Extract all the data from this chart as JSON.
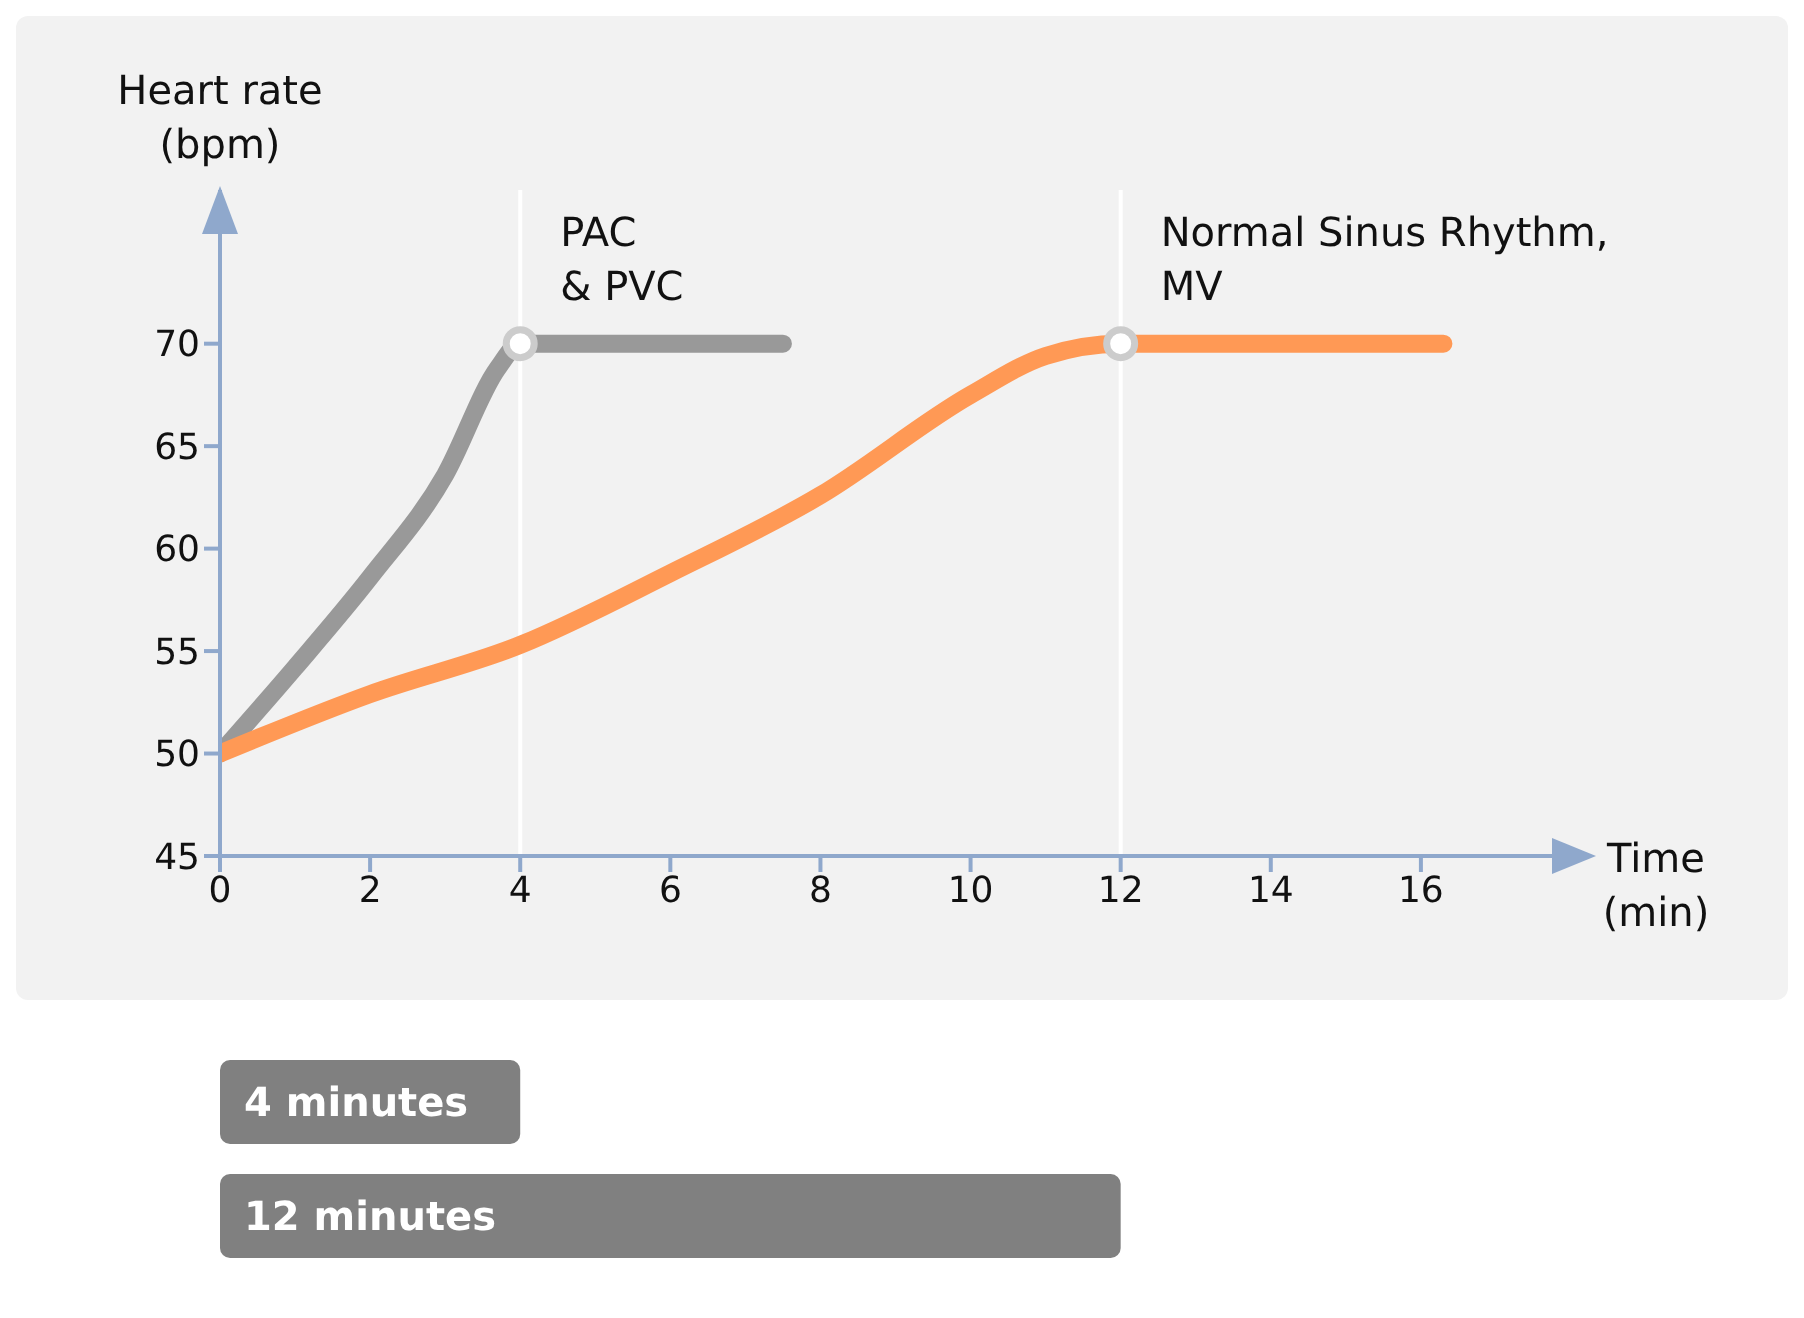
{
  "chart_data": [
    {
      "type": "line",
      "ylabel": "Heart rate\n(bpm)",
      "xlabel": "Time\n(min)",
      "xlim": [
        0,
        17.8
      ],
      "ylim": [
        45,
        77.5
      ],
      "xticks": [
        0,
        2,
        4,
        6,
        8,
        10,
        12,
        14,
        16
      ],
      "yticks": [
        45,
        50,
        55,
        60,
        65,
        70
      ],
      "marker": "none",
      "line_style": "solid",
      "series": [
        {
          "color": "#999999",
          "x": [
            0,
            1,
            2,
            3,
            3.7,
            4,
            7.5
          ],
          "values": [
            50,
            54.2,
            58.6,
            63.6,
            68.8,
            70,
            70
          ]
        },
        {
          "color": "#ff9955",
          "x": [
            0,
            2,
            4,
            6,
            8,
            10,
            11,
            12,
            16.3
          ],
          "values": [
            50,
            52.9,
            55.3,
            58.8,
            62.6,
            67.5,
            69.4,
            70,
            70
          ]
        },
        {
          "type": "scatter",
          "marker": "circle",
          "color": "#cccccc",
          "x": [
            4,
            12
          ],
          "values": [
            70,
            70
          ]
        }
      ],
      "ref_lines": [
        {
          "axis": "x",
          "value": 4,
          "label": "PAC\n& PVC",
          "color": "#ffffff"
        },
        {
          "axis": "x",
          "value": 12,
          "label": "Normal Sinus Rhythm,\nMV",
          "color": "#ffffff"
        }
      ]
    },
    {
      "type": "bar",
      "orientation": "horizontal",
      "categories": [
        null,
        null
      ],
      "values": [
        4,
        12
      ],
      "value_labels": [
        "4 minutes",
        "12 minutes"
      ],
      "color": "#808080",
      "tick_labels": false
    }
  ]
}
